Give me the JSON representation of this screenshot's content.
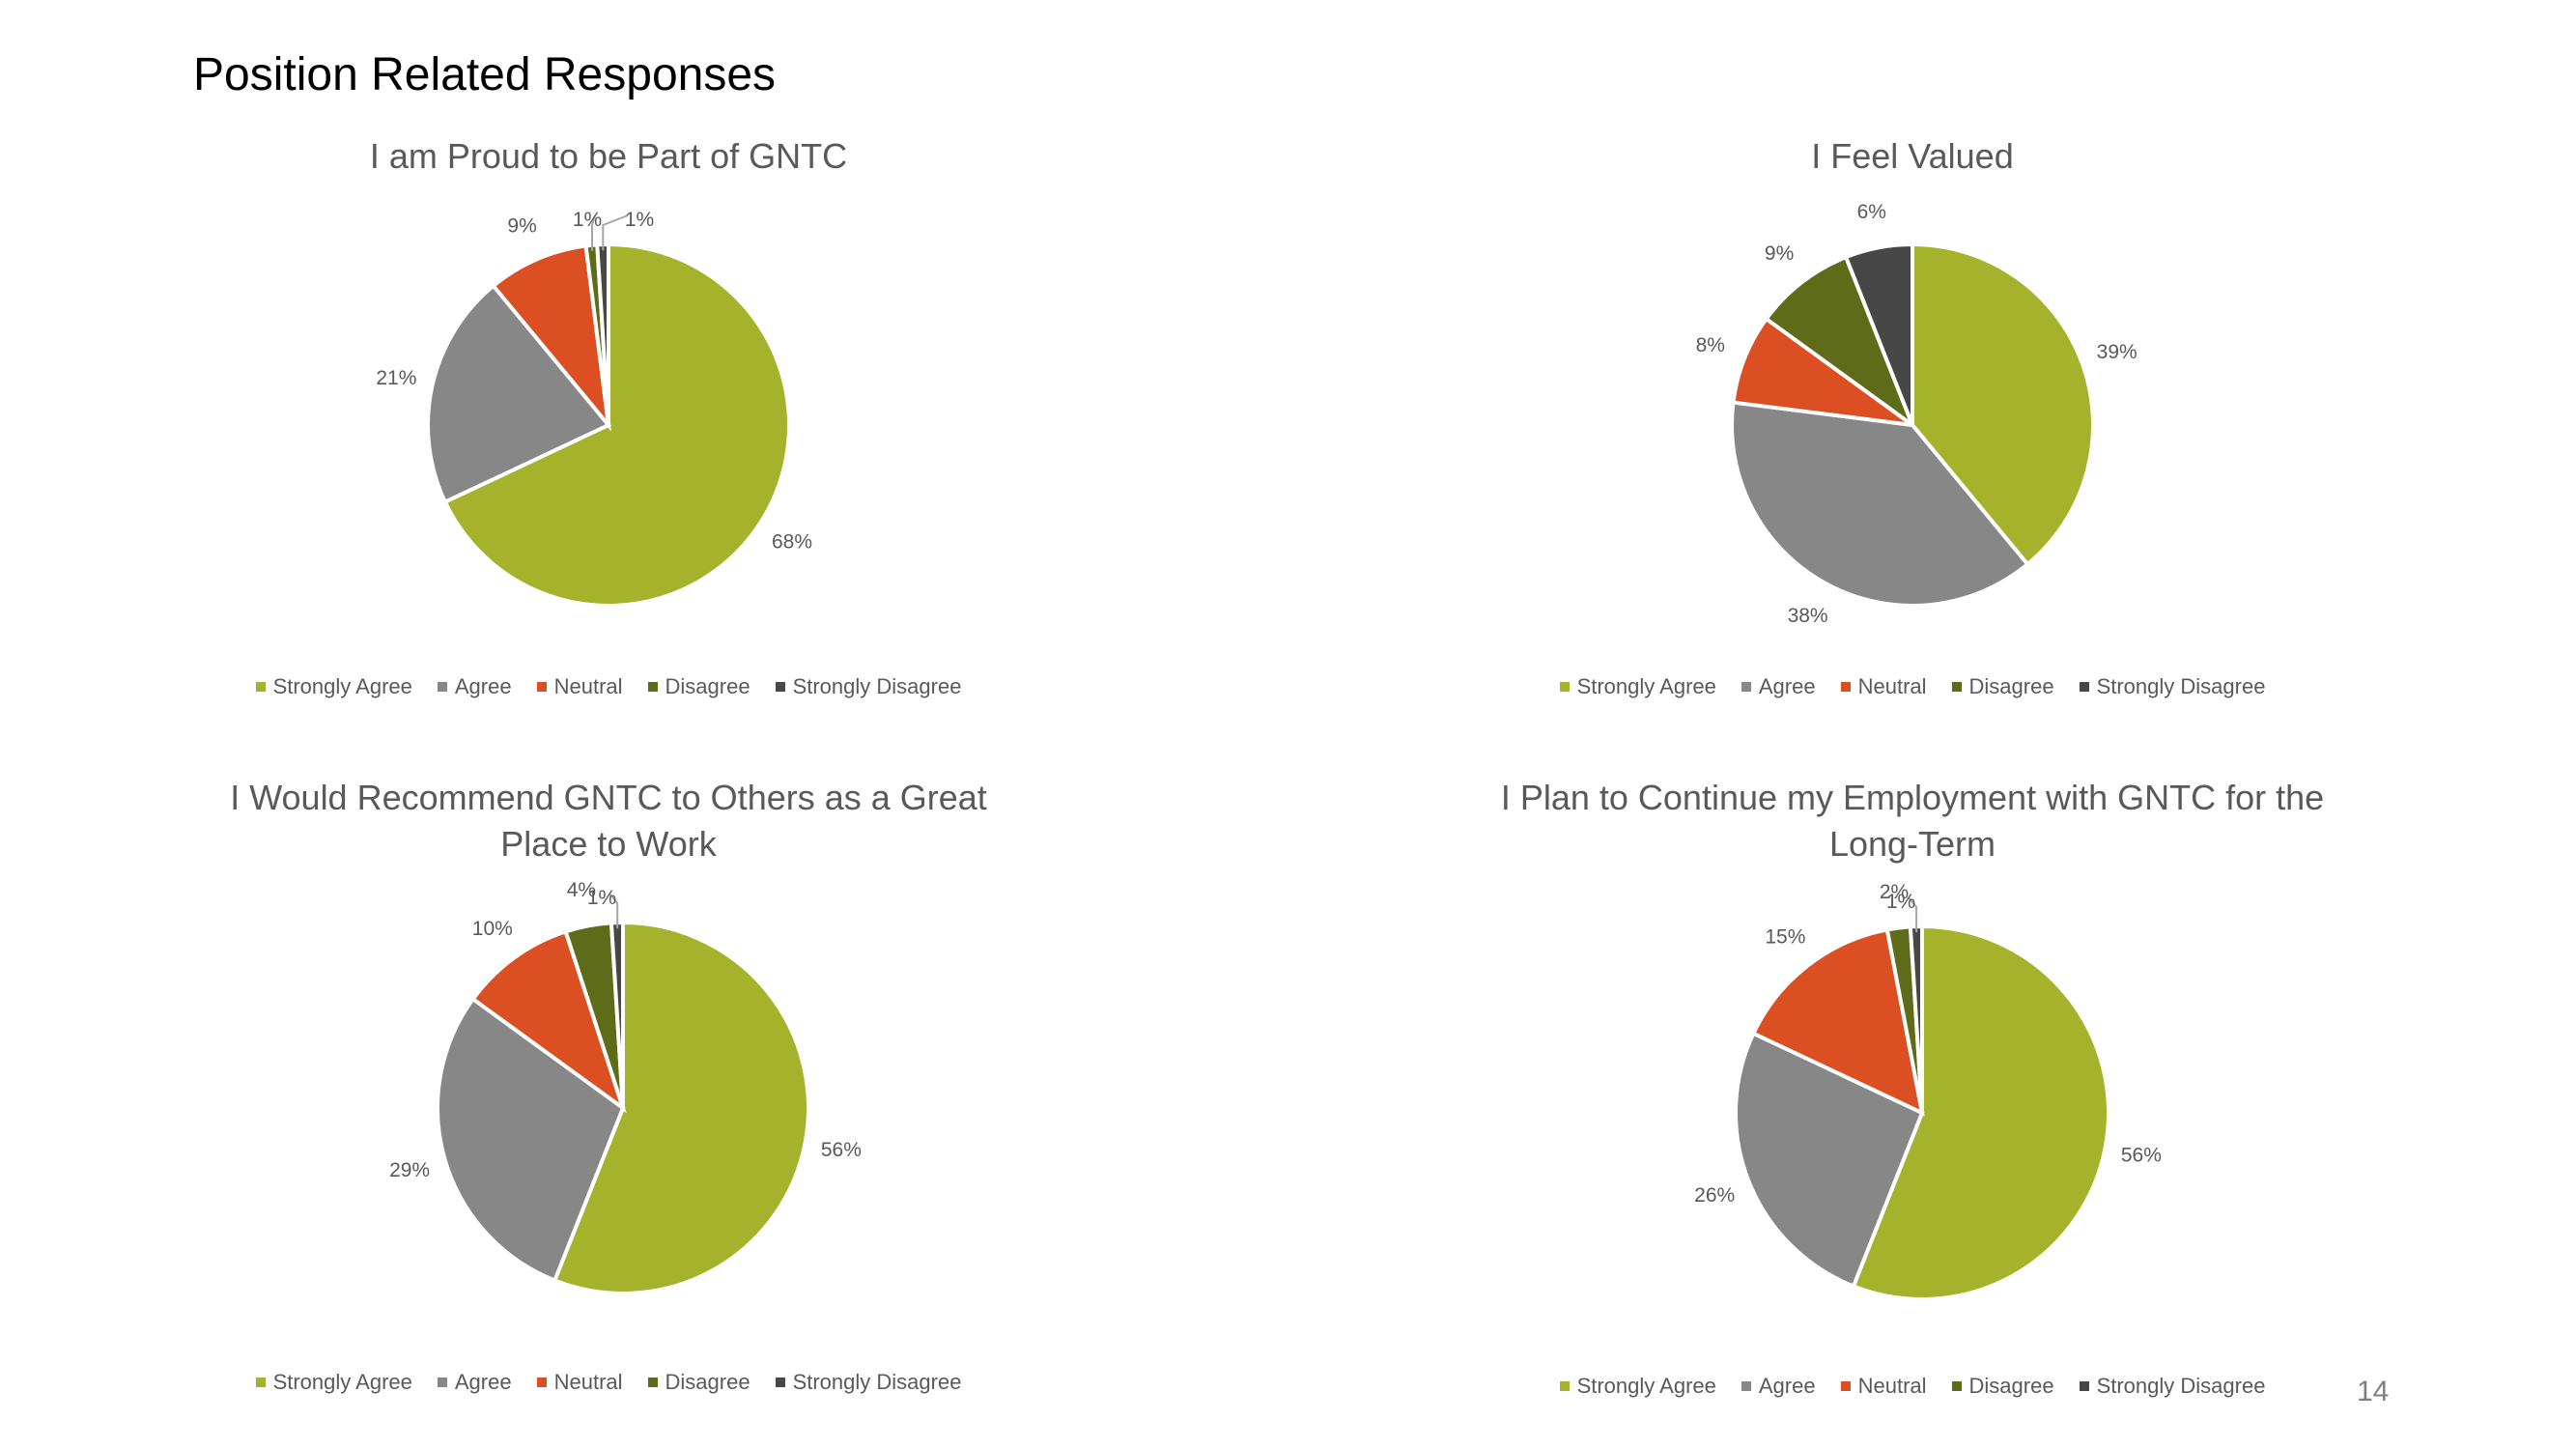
{
  "page": {
    "title": "Position Related Responses",
    "page_number": "14"
  },
  "colors": {
    "strongly_agree": "#A5B22B",
    "agree": "#878787",
    "neutral": "#DC4F23",
    "disagree": "#5E6B19",
    "strongly_disagree": "#474747"
  },
  "chart_data": [
    {
      "type": "pie",
      "title": "I am Proud to be Part of GNTC",
      "categories": [
        "Strongly Agree",
        "Agree",
        "Neutral",
        "Disagree",
        "Strongly Disagree"
      ],
      "values": [
        68,
        21,
        9,
        1,
        1
      ],
      "data_labels": [
        "68%",
        "21%",
        "9%",
        "1%",
        "1%"
      ],
      "legend": "bottom"
    },
    {
      "type": "pie",
      "title": "I Feel Valued",
      "categories": [
        "Strongly Agree",
        "Agree",
        "Neutral",
        "Disagree",
        "Strongly Disagree"
      ],
      "values": [
        39,
        38,
        8,
        9,
        6
      ],
      "data_labels": [
        "39%",
        "38%",
        "8%",
        "9%",
        "6%"
      ],
      "legend": "bottom"
    },
    {
      "type": "pie",
      "title": "I Would Recommend GNTC to Others as a Great Place to Work",
      "categories": [
        "Strongly Agree",
        "Agree",
        "Neutral",
        "Disagree",
        "Strongly Disagree"
      ],
      "values": [
        56,
        29,
        10,
        4,
        1
      ],
      "data_labels": [
        "56%",
        "29%",
        "10%",
        "4%",
        "1%"
      ],
      "legend": "bottom"
    },
    {
      "type": "pie",
      "title": "I Plan to Continue my Employment with GNTC for the Long-Term",
      "categories": [
        "Strongly Agree",
        "Agree",
        "Neutral",
        "Disagree",
        "Strongly Disagree"
      ],
      "values": [
        56,
        26,
        15,
        2,
        1
      ],
      "data_labels": [
        "56%",
        "26%",
        "15%",
        "2%",
        "1%"
      ],
      "legend": "bottom"
    }
  ]
}
